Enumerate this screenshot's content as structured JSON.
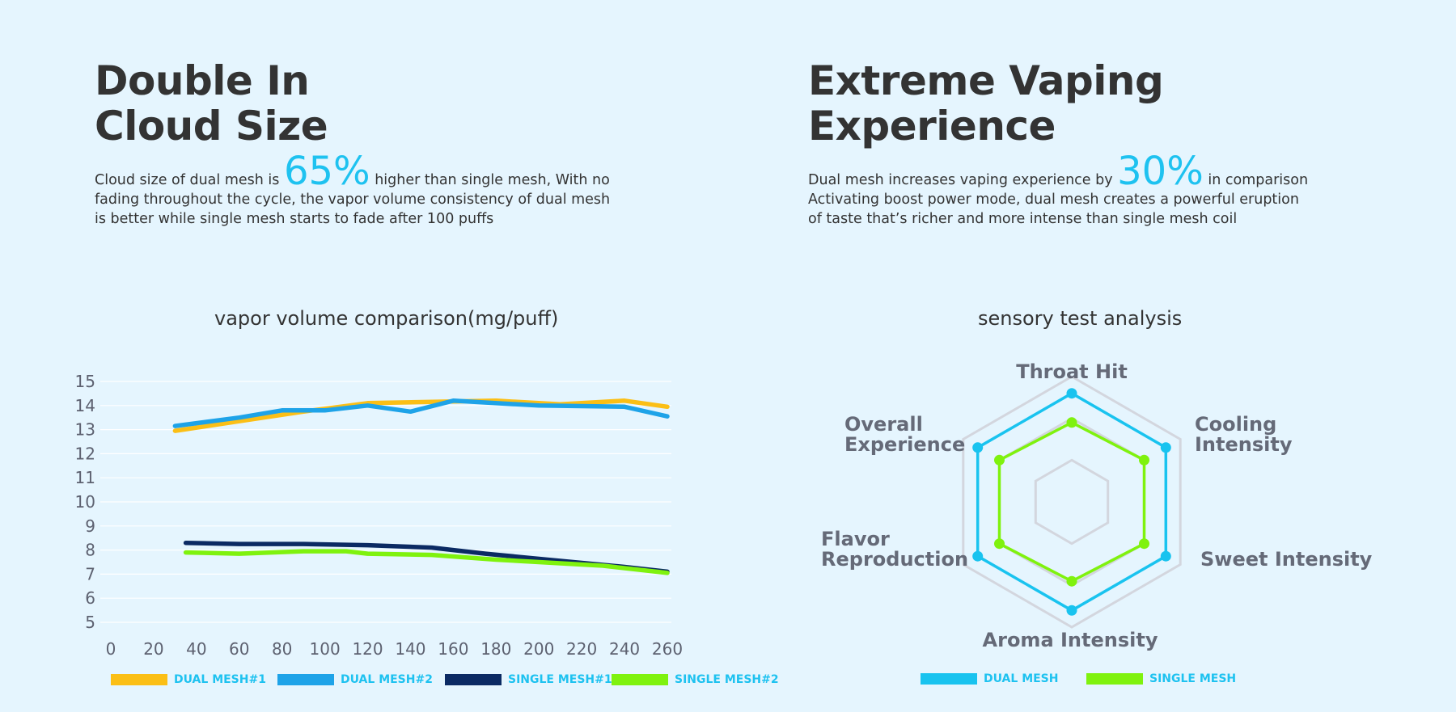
{
  "left": {
    "heading_line1": "Double In",
    "heading_line2": "Cloud Size",
    "para_pre": "Cloud size of dual mesh is ",
    "para_big": "65%",
    "para_post": " higher than single mesh, With no",
    "para_line2": "fading throughout the cycle, the vapor volume consistency of dual mesh",
    "para_line3": "is better while single mesh starts to fade after 100 puffs"
  },
  "right": {
    "heading_line1": "Extreme Vaping",
    "heading_line2": "Experience",
    "para_pre": "Dual mesh increases vaping experience by ",
    "para_big": "30%",
    "para_post": " in comparison",
    "para_line2": "Activating boost power mode, dual mesh creates a powerful eruption",
    "para_line3": "of taste that’s richer and more intense than single mesh coil"
  },
  "colors": {
    "accent": "#1ec2f0",
    "dual_mesh_1": "#fbbf16",
    "dual_mesh_2": "#1ea3e8",
    "single_mesh_1": "#0b2a63",
    "single_mesh_2": "#7ff20e",
    "radar_dual": "#19c3ef",
    "radar_single": "#7ff20e",
    "grid": "#d3d6de"
  },
  "chart_data": [
    {
      "type": "line",
      "title": "vapor volume comparison(mg/puff)",
      "xlabel": "",
      "ylabel": "",
      "x_ticks": [
        "0",
        "20",
        "40",
        "60",
        "80",
        "100",
        "120",
        "140",
        "160",
        "180",
        "200",
        "220",
        "240",
        "260"
      ],
      "y_ticks": [
        "5",
        "6",
        "7",
        "8",
        "9",
        "10",
        "11",
        "12",
        "13",
        "14",
        "15"
      ],
      "xlim": [
        0,
        260
      ],
      "ylim": [
        5,
        15
      ],
      "grid": true,
      "legend_position": "bottom",
      "series": [
        {
          "name": "DUAL MESH#1",
          "color": "#fbbf16",
          "x": [
            30,
            60,
            90,
            120,
            150,
            180,
            210,
            240,
            260
          ],
          "values": [
            12.95,
            13.35,
            13.75,
            14.1,
            14.15,
            14.2,
            14.05,
            14.2,
            13.95
          ]
        },
        {
          "name": "DUAL MESH#2",
          "color": "#1ea3e8",
          "x": [
            30,
            60,
            80,
            100,
            120,
            140,
            160,
            200,
            240,
            260
          ],
          "values": [
            13.15,
            13.5,
            13.8,
            13.8,
            14.0,
            13.75,
            14.2,
            14.0,
            13.95,
            13.55
          ]
        },
        {
          "name": "SINGLE MESH#1",
          "color": "#0b2a63",
          "x": [
            35,
            60,
            90,
            120,
            150,
            175,
            210,
            240,
            260
          ],
          "values": [
            8.3,
            8.25,
            8.25,
            8.2,
            8.1,
            7.85,
            7.55,
            7.3,
            7.1
          ]
        },
        {
          "name": "SINGLE MESH#2",
          "color": "#7ff20e",
          "x": [
            35,
            60,
            90,
            110,
            120,
            150,
            180,
            200,
            230,
            260
          ],
          "values": [
            7.9,
            7.85,
            7.95,
            7.95,
            7.85,
            7.8,
            7.6,
            7.5,
            7.35,
            7.05
          ]
        }
      ]
    },
    {
      "type": "radar",
      "title": "sensory test analysis",
      "axes": [
        "Throat Hit",
        "Cooling Intensity",
        "Sweet Intensity",
        "Aroma Intensity",
        "Flavor Reproduction",
        "Overall Experience"
      ],
      "axis_label_lines": [
        [
          "Throat Hit"
        ],
        [
          "Cooling",
          "Intensity"
        ],
        [
          "Sweet Intensity"
        ],
        [
          "Aroma Intensity"
        ],
        [
          "Flavor",
          "Reproduction"
        ],
        [
          "Overall",
          "Experience"
        ]
      ],
      "rings": 3,
      "scale_max": 3,
      "legend_position": "bottom",
      "series": [
        {
          "name": "DUAL MESH",
          "color": "#19c3ef",
          "values": [
            2.6,
            2.6,
            2.6,
            2.6,
            2.6,
            2.6
          ]
        },
        {
          "name": "SINGLE MESH",
          "color": "#7ff20e",
          "values": [
            1.9,
            2.0,
            2.0,
            1.9,
            2.0,
            2.0
          ]
        }
      ]
    }
  ]
}
